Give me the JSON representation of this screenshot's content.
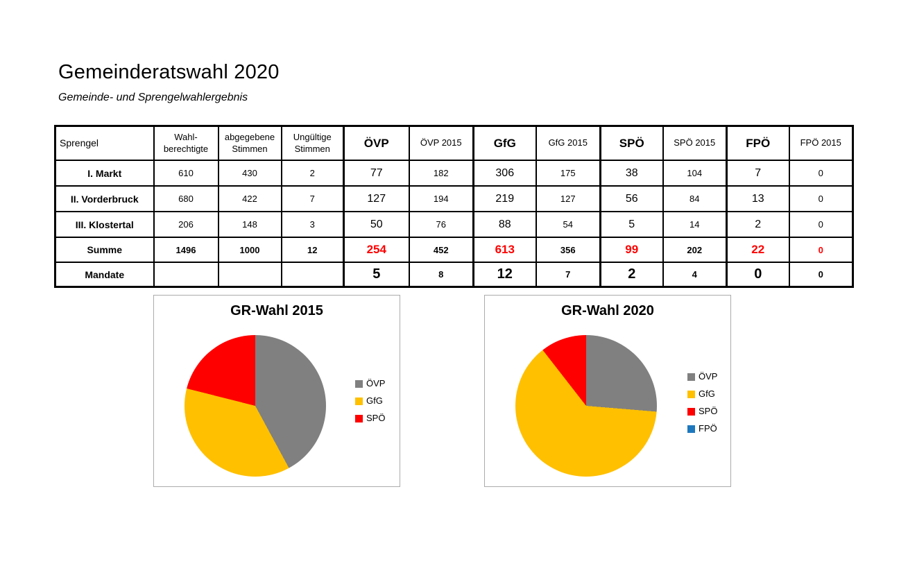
{
  "page": {
    "title": "Gemeinderatswahl 2020",
    "subtitle": "Gemeinde- und Sprengelwahlergebnis"
  },
  "table": {
    "columns": [
      "Sprengel",
      "Wahl- berechtigte",
      "abgegebene Stimmen",
      "Ungültige Stimmen",
      "ÖVP",
      "ÖVP 2015",
      "GfG",
      "GfG 2015",
      "SPÖ",
      "SPÖ 2015",
      "FPÖ",
      "FPÖ 2015"
    ],
    "rows": [
      {
        "type": "data",
        "cells": [
          "I. Markt",
          "610",
          "430",
          "2",
          "77",
          "182",
          "306",
          "175",
          "38",
          "104",
          "7",
          "0"
        ]
      },
      {
        "type": "data",
        "cells": [
          "II. Vorderbruck",
          "680",
          "422",
          "7",
          "127",
          "194",
          "219",
          "127",
          "56",
          "84",
          "13",
          "0"
        ]
      },
      {
        "type": "data",
        "cells": [
          "III. Klostertal",
          "206",
          "148",
          "3",
          "50",
          "76",
          "88",
          "54",
          "5",
          "14",
          "2",
          "0"
        ]
      },
      {
        "type": "summe",
        "cells": [
          "Summe",
          "1496",
          "1000",
          "12",
          "254",
          "452",
          "613",
          "356",
          "99",
          "202",
          "22",
          "0"
        ]
      },
      {
        "type": "mandate",
        "cells": [
          "Mandate",
          "",
          "",
          "",
          "5",
          "8",
          "12",
          "7",
          "2",
          "4",
          "0",
          "0"
        ]
      }
    ],
    "accent_red": "#FF0000"
  },
  "chart_data": [
    {
      "type": "pie",
      "title": "GR-Wahl 2015",
      "labels": [
        "ÖVP",
        "GfG",
        "SPÖ"
      ],
      "values": [
        8,
        7,
        4
      ],
      "values_pct": [
        42.1,
        36.8,
        21.1
      ],
      "colors": [
        "#808080",
        "#FFC000",
        "#FF0000"
      ],
      "legend_position": "right",
      "start_angle_deg": 0
    },
    {
      "type": "pie",
      "title": "GR-Wahl 2020",
      "labels": [
        "ÖVP",
        "GfG",
        "SPÖ",
        "FPÖ"
      ],
      "values": [
        5,
        12,
        2,
        0
      ],
      "values_pct": [
        26.3,
        63.2,
        10.5,
        0
      ],
      "colors": [
        "#808080",
        "#FFC000",
        "#FF0000",
        "#1E78BE"
      ],
      "legend_position": "right",
      "start_angle_deg": 0
    }
  ]
}
